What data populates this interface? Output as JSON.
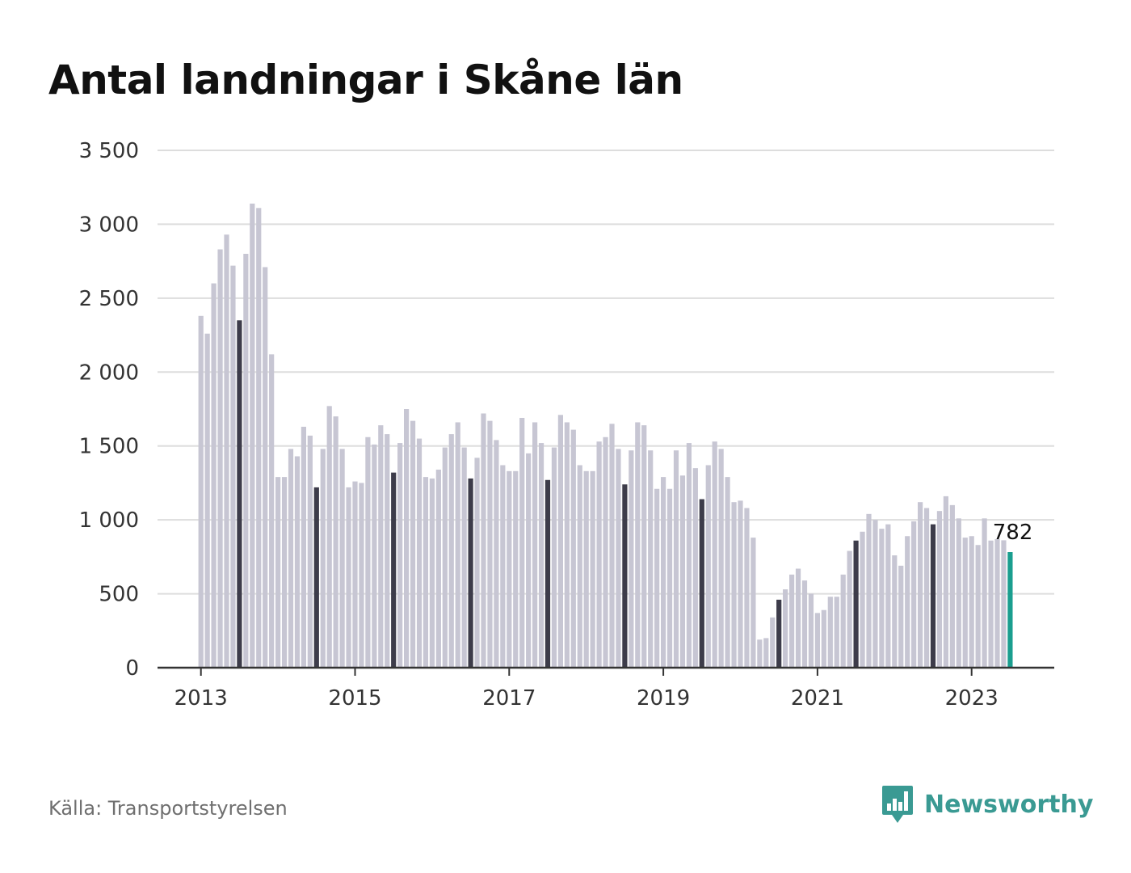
{
  "chart_data": {
    "type": "bar",
    "title": "Antal landningar i Skåne län",
    "ylim": [
      0,
      3500
    ],
    "y_ticks": [
      "0",
      "500",
      "1 000",
      "1 500",
      "2 000",
      "2 500",
      "3 000",
      "3 500"
    ],
    "x_ticks": [
      "2013",
      "2015",
      "2017",
      "2019",
      "2021",
      "2023"
    ],
    "start": "2013-01",
    "end": "2023-07",
    "grid": true,
    "colors": {
      "regular": "#c7c6d3",
      "july": "#3d3c4a",
      "latest": "#1a9e8f",
      "grid": "#dddddd",
      "axis": "#333333"
    },
    "values": [
      2380,
      2260,
      2600,
      2830,
      2930,
      2720,
      2350,
      2800,
      3140,
      3110,
      2710,
      2120,
      1290,
      1290,
      1480,
      1430,
      1630,
      1570,
      1220,
      1480,
      1770,
      1700,
      1480,
      1220,
      1260,
      1250,
      1560,
      1510,
      1640,
      1580,
      1320,
      1520,
      1750,
      1670,
      1550,
      1290,
      1280,
      1340,
      1490,
      1580,
      1660,
      1490,
      1280,
      1420,
      1720,
      1670,
      1540,
      1370,
      1330,
      1330,
      1690,
      1450,
      1660,
      1520,
      1270,
      1490,
      1710,
      1660,
      1610,
      1370,
      1330,
      1330,
      1530,
      1560,
      1650,
      1480,
      1240,
      1470,
      1660,
      1640,
      1470,
      1210,
      1290,
      1210,
      1470,
      1300,
      1520,
      1350,
      1140,
      1370,
      1530,
      1480,
      1290,
      1120,
      1130,
      1080,
      880,
      190,
      200,
      340,
      460,
      530,
      630,
      670,
      590,
      500,
      370,
      390,
      480,
      480,
      630,
      790,
      860,
      920,
      1040,
      1000,
      940,
      970,
      760,
      690,
      890,
      990,
      1120,
      1080,
      970,
      1060,
      1160,
      1100,
      1010,
      880,
      890,
      830,
      1010,
      860,
      870,
      862,
      782
    ],
    "highlight_month": 7,
    "annotation": {
      "label": "782"
    }
  },
  "footer": {
    "source": "Källa: Transportstyrelsen",
    "brand": "Newsworthy"
  }
}
